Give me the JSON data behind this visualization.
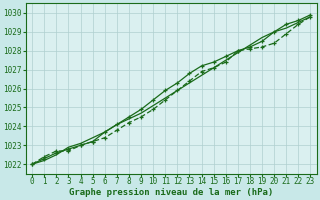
{
  "title": "Graphe pression niveau de la mer (hPa)",
  "background_color": "#c8e8e8",
  "plot_background_color": "#daf0f0",
  "grid_color": "#b0d0d0",
  "line_color": "#1a6b1a",
  "text_color": "#1a6b1a",
  "x_values": [
    0,
    1,
    2,
    3,
    4,
    5,
    6,
    7,
    8,
    9,
    10,
    11,
    12,
    13,
    14,
    15,
    16,
    17,
    18,
    19,
    20,
    21,
    22,
    23
  ],
  "line1": [
    1022.0,
    1022.3,
    1022.6,
    1022.8,
    1023.0,
    1023.2,
    1023.7,
    1024.1,
    1024.5,
    1024.9,
    1025.4,
    1025.9,
    1026.3,
    1026.8,
    1027.2,
    1027.4,
    1027.7,
    1028.0,
    1028.2,
    1028.5,
    1029.0,
    1029.4,
    1029.6,
    1029.9
  ],
  "line2": [
    1022.0,
    1022.4,
    1022.7,
    1022.7,
    1023.0,
    1023.2,
    1023.4,
    1023.8,
    1024.2,
    1024.5,
    1024.9,
    1025.4,
    1025.9,
    1026.4,
    1026.9,
    1027.1,
    1027.4,
    1028.0,
    1028.1,
    1028.2,
    1028.4,
    1028.9,
    1029.4,
    1029.8
  ],
  "line3": [
    1022.0,
    1022.2,
    1022.5,
    1022.9,
    1023.1,
    1023.4,
    1023.7,
    1024.1,
    1024.4,
    1024.7,
    1025.1,
    1025.5,
    1025.9,
    1026.3,
    1026.7,
    1027.1,
    1027.5,
    1027.9,
    1028.3,
    1028.7,
    1029.0,
    1029.2,
    1029.5,
    1029.8
  ],
  "ylim": [
    1021.5,
    1030.5
  ],
  "yticks": [
    1022,
    1023,
    1024,
    1025,
    1026,
    1027,
    1028,
    1029,
    1030
  ],
  "xlim": [
    -0.5,
    23.5
  ],
  "xticks": [
    0,
    1,
    2,
    3,
    4,
    5,
    6,
    7,
    8,
    9,
    10,
    11,
    12,
    13,
    14,
    15,
    16,
    17,
    18,
    19,
    20,
    21,
    22,
    23
  ],
  "tick_fontsize": 5.5,
  "title_fontsize": 6.5
}
